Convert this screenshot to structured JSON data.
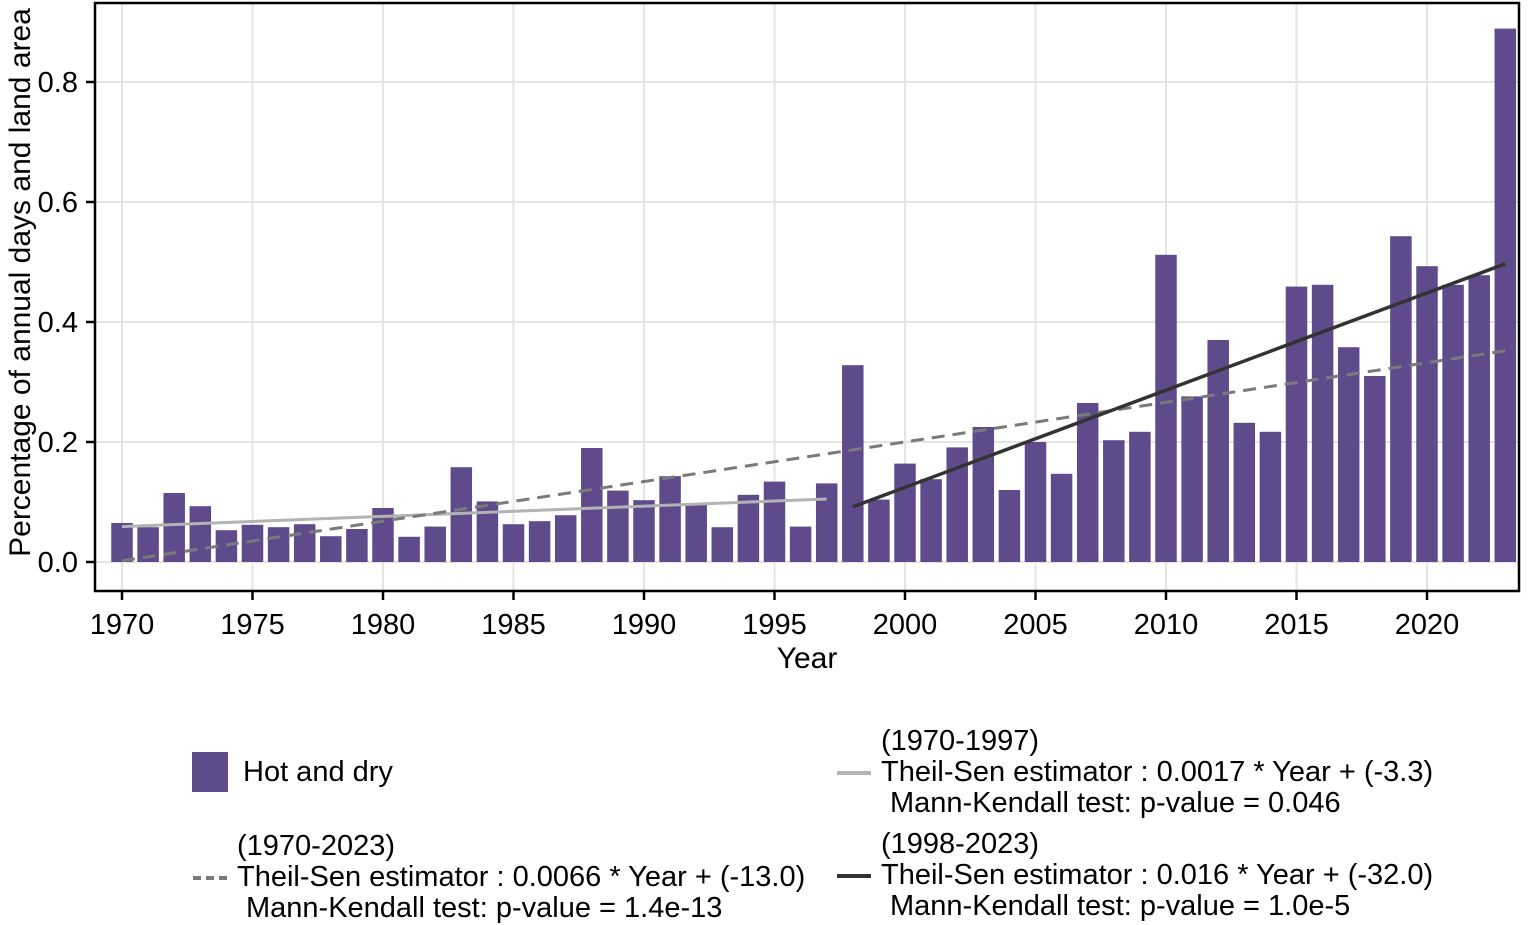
{
  "chart_data": {
    "type": "bar",
    "title": "",
    "xlabel": "Year",
    "ylabel": "Percentage of annual days and land area",
    "grid": true,
    "xlim": [
      1969,
      2023.6
    ],
    "ylim": [
      -0.048,
      0.932
    ],
    "x_ticks": [
      1970,
      1975,
      1980,
      1985,
      1990,
      1995,
      2000,
      2005,
      2010,
      2015,
      2020
    ],
    "y_ticks": [
      0.0,
      0.2,
      0.4,
      0.6,
      0.8
    ],
    "y_tick_labels": [
      "0.0",
      "0.2",
      "0.4",
      "0.6",
      "0.8"
    ],
    "series_label": "Hot and dry",
    "bar_color": "#5f4b8b",
    "categories": [
      1970,
      1971,
      1972,
      1973,
      1974,
      1975,
      1976,
      1977,
      1978,
      1979,
      1980,
      1981,
      1982,
      1983,
      1984,
      1985,
      1986,
      1987,
      1988,
      1989,
      1990,
      1991,
      1992,
      1993,
      1994,
      1995,
      1996,
      1997,
      1998,
      1999,
      2000,
      2001,
      2002,
      2003,
      2004,
      2005,
      2006,
      2007,
      2008,
      2009,
      2010,
      2011,
      2012,
      2013,
      2014,
      2015,
      2016,
      2017,
      2018,
      2019,
      2020,
      2021,
      2022,
      2023
    ],
    "values": [
      0.065,
      0.058,
      0.115,
      0.093,
      0.053,
      0.062,
      0.058,
      0.063,
      0.043,
      0.055,
      0.09,
      0.042,
      0.059,
      0.158,
      0.101,
      0.063,
      0.068,
      0.078,
      0.19,
      0.119,
      0.103,
      0.143,
      0.095,
      0.058,
      0.112,
      0.134,
      0.059,
      0.131,
      0.328,
      0.104,
      0.164,
      0.138,
      0.191,
      0.225,
      0.12,
      0.2,
      0.147,
      0.265,
      0.203,
      0.217,
      0.512,
      0.276,
      0.37,
      0.232,
      0.217,
      0.459,
      0.462,
      0.358,
      0.31,
      0.543,
      0.493,
      0.462,
      0.478,
      0.889
    ],
    "trend_lines": [
      {
        "name": "theil-sen-1970-1997",
        "color": "#b3b3b3",
        "dashed": false,
        "width": 3,
        "x": [
          1970,
          1997
        ],
        "y": [
          0.059,
          0.105
        ]
      },
      {
        "name": "theil-sen-1970-2023",
        "color": "#7a7a7a",
        "dashed": true,
        "width": 3,
        "x": [
          1970,
          2023
        ],
        "y": [
          0.002,
          0.352
        ]
      },
      {
        "name": "theil-sen-1998-2023",
        "color": "#333333",
        "dashed": false,
        "width": 3.5,
        "x": [
          1998,
          2023
        ],
        "y": [
          0.092,
          0.497
        ]
      }
    ],
    "colors": {
      "gridline": "#e4e4e4",
      "axis": "#000000",
      "text": "#000000"
    }
  },
  "legend": {
    "bar": {
      "label": "Hot and dry",
      "color": "#5f4b8b"
    },
    "entries": [
      {
        "period": "(1970-2023)",
        "estimator": "Theil-Sen estimator : 0.0066 * Year + (-13.0)",
        "test": "Mann-Kendall test: p-value = 1.4e-13",
        "line_style": "dashed",
        "color": "#7a7a7a"
      },
      {
        "period": "(1970-1997)",
        "estimator": "Theil-Sen estimator : 0.0017 * Year + (-3.3)",
        "test": "Mann-Kendall test: p-value = 0.046",
        "line_style": "solid",
        "color": "#b3b3b3"
      },
      {
        "period": "(1998-2023)",
        "estimator": "Theil-Sen estimator : 0.016 * Year + (-32.0)",
        "test": "Mann-Kendall test: p-value = 1.0e-5",
        "line_style": "solid",
        "color": "#333333"
      }
    ]
  }
}
